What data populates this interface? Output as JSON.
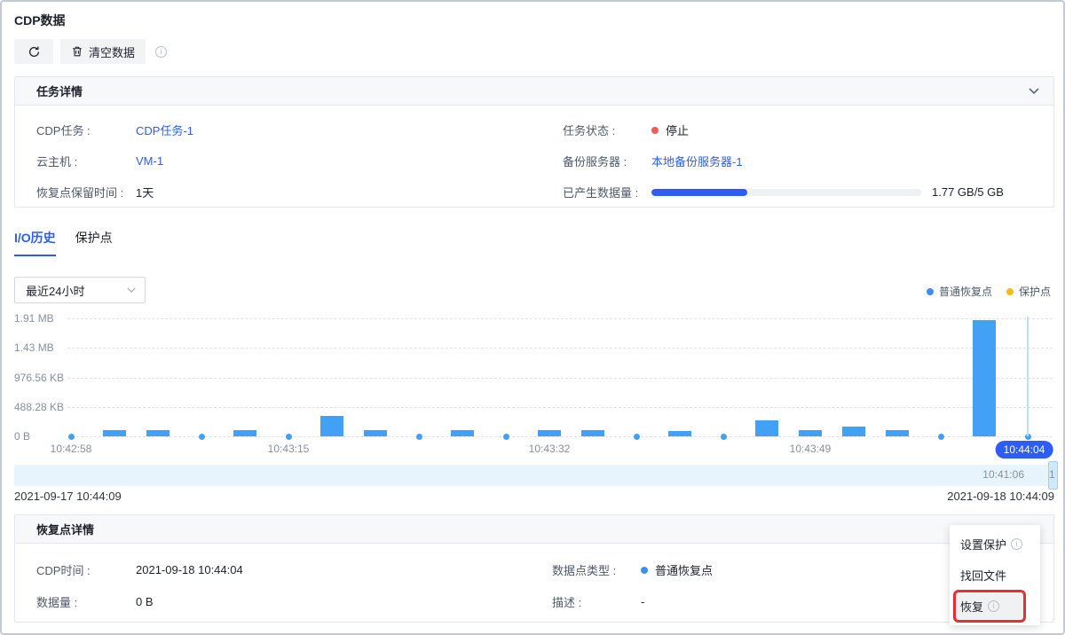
{
  "page": {
    "title": "CDP数据"
  },
  "toolbar": {
    "refresh_icon": "refresh-icon",
    "clear_label": "清空数据",
    "trash_icon": "trash-icon",
    "info_icon": "info-icon"
  },
  "task_panel": {
    "title": "任务详情",
    "collapse_icon": "chevron-down-icon",
    "fields": {
      "cdp_task": {
        "label": "CDP任务 :",
        "value": "CDP任务-1"
      },
      "vm": {
        "label": "云主机 :",
        "value": "VM-1"
      },
      "retention": {
        "label": "恢复点保留时间 :",
        "value": "1天"
      },
      "status": {
        "label": "任务状态 :",
        "value": "停止"
      },
      "backup_server": {
        "label": "备份服务器 :",
        "value": "本地备份服务器-1"
      },
      "data_generated": {
        "label": "已产生数据量 :",
        "value": "1.77 GB/5 GB",
        "percent": 35.4
      }
    }
  },
  "tabs": {
    "io_history": "I/O历史",
    "protect_points": "保护点"
  },
  "filter": {
    "selected": "最近24小时"
  },
  "chart_data": {
    "type": "bar",
    "title": "",
    "xlabel": "",
    "ylabel": "",
    "grid": "dashed horizontal",
    "legend_position": "top-right",
    "legend": [
      {
        "label": "普通恢复点",
        "color": "#3d8df5"
      },
      {
        "label": "保护点",
        "color": "#f7ba1e"
      }
    ],
    "y_ticks": [
      "1.91 MB",
      "1.43 MB",
      "976.56 KB",
      "488.28 KB",
      "0 B"
    ],
    "y_max_kb": 1956,
    "points_kb": [
      0,
      110,
      100,
      0,
      105,
      0,
      345,
      100,
      0,
      105,
      0,
      110,
      100,
      0,
      95,
      0,
      260,
      105,
      160,
      105,
      0,
      1925,
      0
    ],
    "x_ticks": [
      {
        "slot": 0,
        "label": "10:42:58"
      },
      {
        "slot": 5,
        "label": "10:43:15"
      },
      {
        "slot": 11,
        "label": "10:43:32"
      },
      {
        "slot": 17,
        "label": "10:43:49"
      }
    ],
    "selected": {
      "slot": 22,
      "label": "10:44:04"
    }
  },
  "timeline": {
    "band_label": "10:41:06",
    "clipped_label": "1",
    "start": "2021-09-17 10:44:09",
    "end": "2021-09-18 10:44:09"
  },
  "detail_panel": {
    "title": "恢复点详情",
    "fields": {
      "cdp_time": {
        "label": "CDP时间 :",
        "value": "2021-09-18 10:44:04"
      },
      "data_size": {
        "label": "数据量 :",
        "value": "0 B"
      },
      "point_type": {
        "label": "数据点类型 :",
        "value": "普通恢复点"
      },
      "description": {
        "label": "描述 :",
        "value": "-"
      }
    }
  },
  "context_menu": {
    "items": [
      {
        "label": "设置保护",
        "info": true,
        "highlighted": false
      },
      {
        "label": "找回文件",
        "info": false,
        "highlighted": false
      },
      {
        "label": "恢复",
        "info": true,
        "highlighted": true
      }
    ]
  },
  "colors": {
    "accent_blue": "#2d5cf6",
    "bar_blue": "#42a1f5",
    "legend_orange": "#f7ba1e",
    "status_red": "#f35b57",
    "annotation_red": "#e5302f",
    "band_blue": "#e7f4fd",
    "border_gray": "#e5e6eb",
    "text_primary": "#1d2129",
    "text_muted": "#86909c"
  }
}
